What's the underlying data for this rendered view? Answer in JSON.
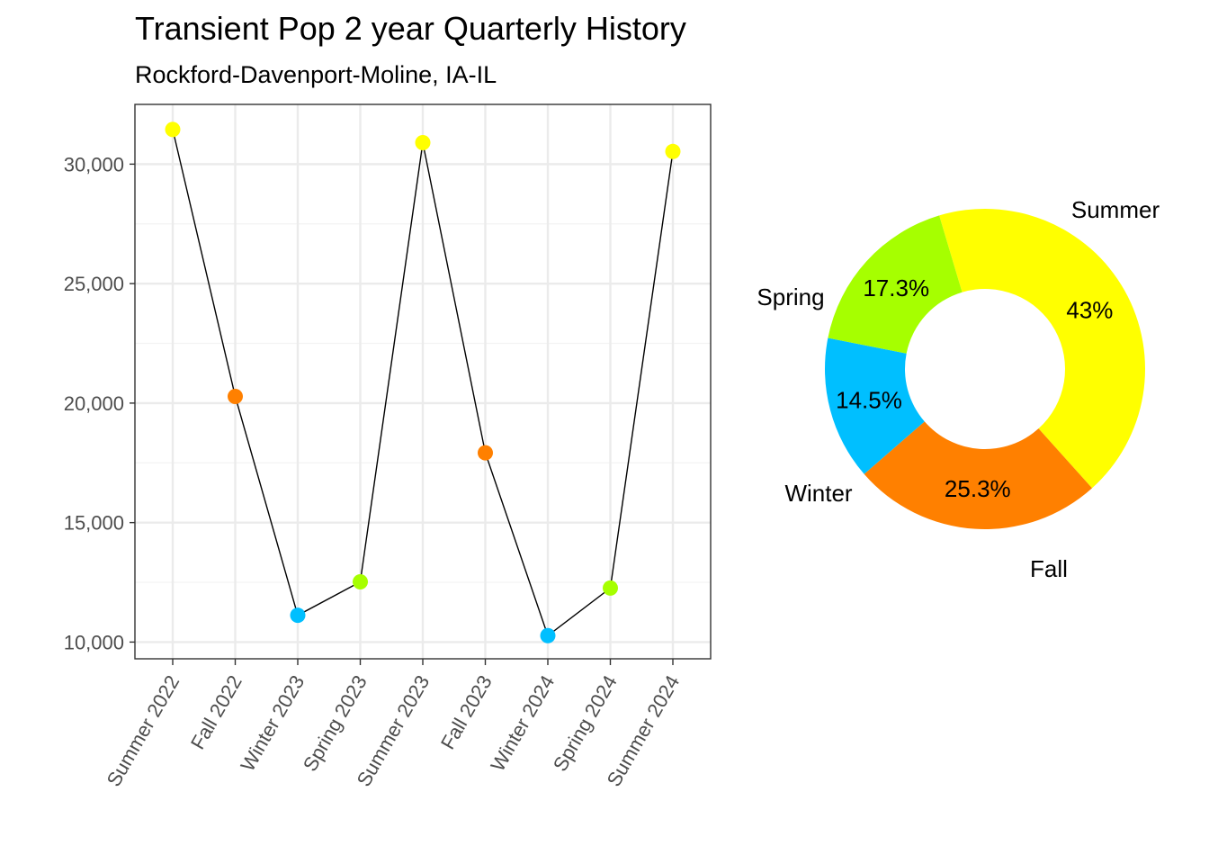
{
  "title": "Transient Pop 2 year Quarterly History",
  "subtitle": "Rockford-Davenport-Moline, IA-IL",
  "colors": {
    "Summer": "#ffff00",
    "Fall": "#ff8000",
    "Winter": "#00bfff",
    "Spring": "#a6ff00",
    "line": "#000000",
    "grid_major": "#ebebeb",
    "grid_minor": "#f3f3f3",
    "panel_border": "#333333"
  },
  "chart_data": [
    {
      "type": "line",
      "categories": [
        "Summer 2022",
        "Fall 2022",
        "Winter 2023",
        "Spring 2023",
        "Summer 2023",
        "Fall 2023",
        "Winter 2024",
        "Spring 2024",
        "Summer 2024"
      ],
      "seasons": [
        "Summer",
        "Fall",
        "Winter",
        "Spring",
        "Summer",
        "Fall",
        "Winter",
        "Spring",
        "Summer"
      ],
      "values": [
        31450,
        20280,
        11120,
        12520,
        30900,
        17920,
        10270,
        12260,
        30530
      ],
      "yticks": [
        10000,
        15000,
        20000,
        25000,
        30000
      ],
      "ytick_labels": [
        "10,000",
        "15,000",
        "20,000",
        "25,000",
        "30,000"
      ],
      "ylim": [
        9300,
        32500
      ],
      "xlabel": "",
      "ylabel": "",
      "grid": true
    },
    {
      "type": "pie",
      "donut": true,
      "slices": [
        {
          "label": "Summer",
          "value": 43.0,
          "text": "43%"
        },
        {
          "label": "Fall",
          "value": 25.3,
          "text": "25.3%"
        },
        {
          "label": "Winter",
          "value": 14.5,
          "text": "14.5%"
        },
        {
          "label": "Spring",
          "value": 17.3,
          "text": "17.3%"
        }
      ]
    }
  ]
}
